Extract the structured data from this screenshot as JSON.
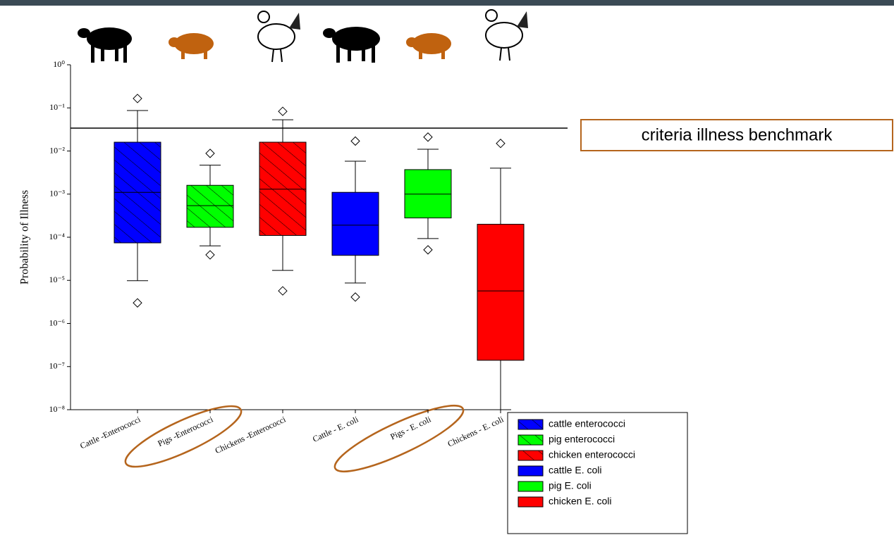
{
  "chart_data": {
    "type": "box",
    "ylabel": "Probability of Illness",
    "log_scale": true,
    "ylim": [
      1e-08,
      1
    ],
    "yticks": [
      {
        "value": 1,
        "label": "10⁰"
      },
      {
        "value": 0.1,
        "label": "10⁻¹"
      },
      {
        "value": 0.01,
        "label": "10⁻²"
      },
      {
        "value": 0.001,
        "label": "10⁻³"
      },
      {
        "value": 0.0001,
        "label": "10⁻⁴"
      },
      {
        "value": 1e-05,
        "label": "10⁻⁵"
      },
      {
        "value": 1e-06,
        "label": "10⁻⁶"
      },
      {
        "value": 1e-07,
        "label": "10⁻⁷"
      },
      {
        "value": 1e-08,
        "label": "10⁻⁸"
      }
    ],
    "categories": [
      "Cattle -Enterococci",
      "Pigs -Enterococci",
      "Chickens -Enterococci",
      "Cattle - E. coli",
      "Pigs - E. coli",
      "Chickens - E. coli"
    ],
    "series": [
      {
        "name": "cattle enterococci",
        "color": "#0000ff",
        "hatched": true,
        "min": 9.8e-06,
        "q1": 7.4e-05,
        "median": 0.0011,
        "q3": 0.016,
        "max": 0.087,
        "outliers": [
          0.165,
          3e-06
        ]
      },
      {
        "name": "pig enterococci",
        "color": "#00ff00",
        "hatched": true,
        "min": 6.3e-05,
        "q1": 0.00017,
        "median": 0.00054,
        "q3": 0.0016,
        "max": 0.0047,
        "outliers": [
          0.0088,
          3.9e-05
        ]
      },
      {
        "name": "chicken enterococci",
        "color": "#ff0000",
        "hatched": true,
        "min": 1.7e-05,
        "q1": 0.00011,
        "median": 0.0013,
        "q3": 0.016,
        "max": 0.053,
        "outliers": [
          0.083,
          5.7e-06
        ]
      },
      {
        "name": "cattle E. coli",
        "color": "#0000ff",
        "hatched": false,
        "min": 8.7e-06,
        "q1": 3.8e-05,
        "median": 0.00019,
        "q3": 0.0011,
        "max": 0.0058,
        "outliers": [
          0.017,
          4.1e-06
        ]
      },
      {
        "name": "pig E. coli",
        "color": "#00ff00",
        "hatched": false,
        "min": 9.3e-05,
        "q1": 0.00028,
        "median": 0.001,
        "q3": 0.0037,
        "max": 0.011,
        "outliers": [
          0.021,
          5.1e-05
        ]
      },
      {
        "name": "chicken E. coli",
        "color": "#ff0000",
        "hatched": false,
        "min": 1e-08,
        "q1": 1.4e-07,
        "median": 5.7e-06,
        "q3": 0.0002,
        "max": 0.004,
        "outliers": [
          0.015
        ]
      }
    ],
    "benchmark": {
      "label": "criteria illness benchmark",
      "value": 0.034
    }
  }
}
